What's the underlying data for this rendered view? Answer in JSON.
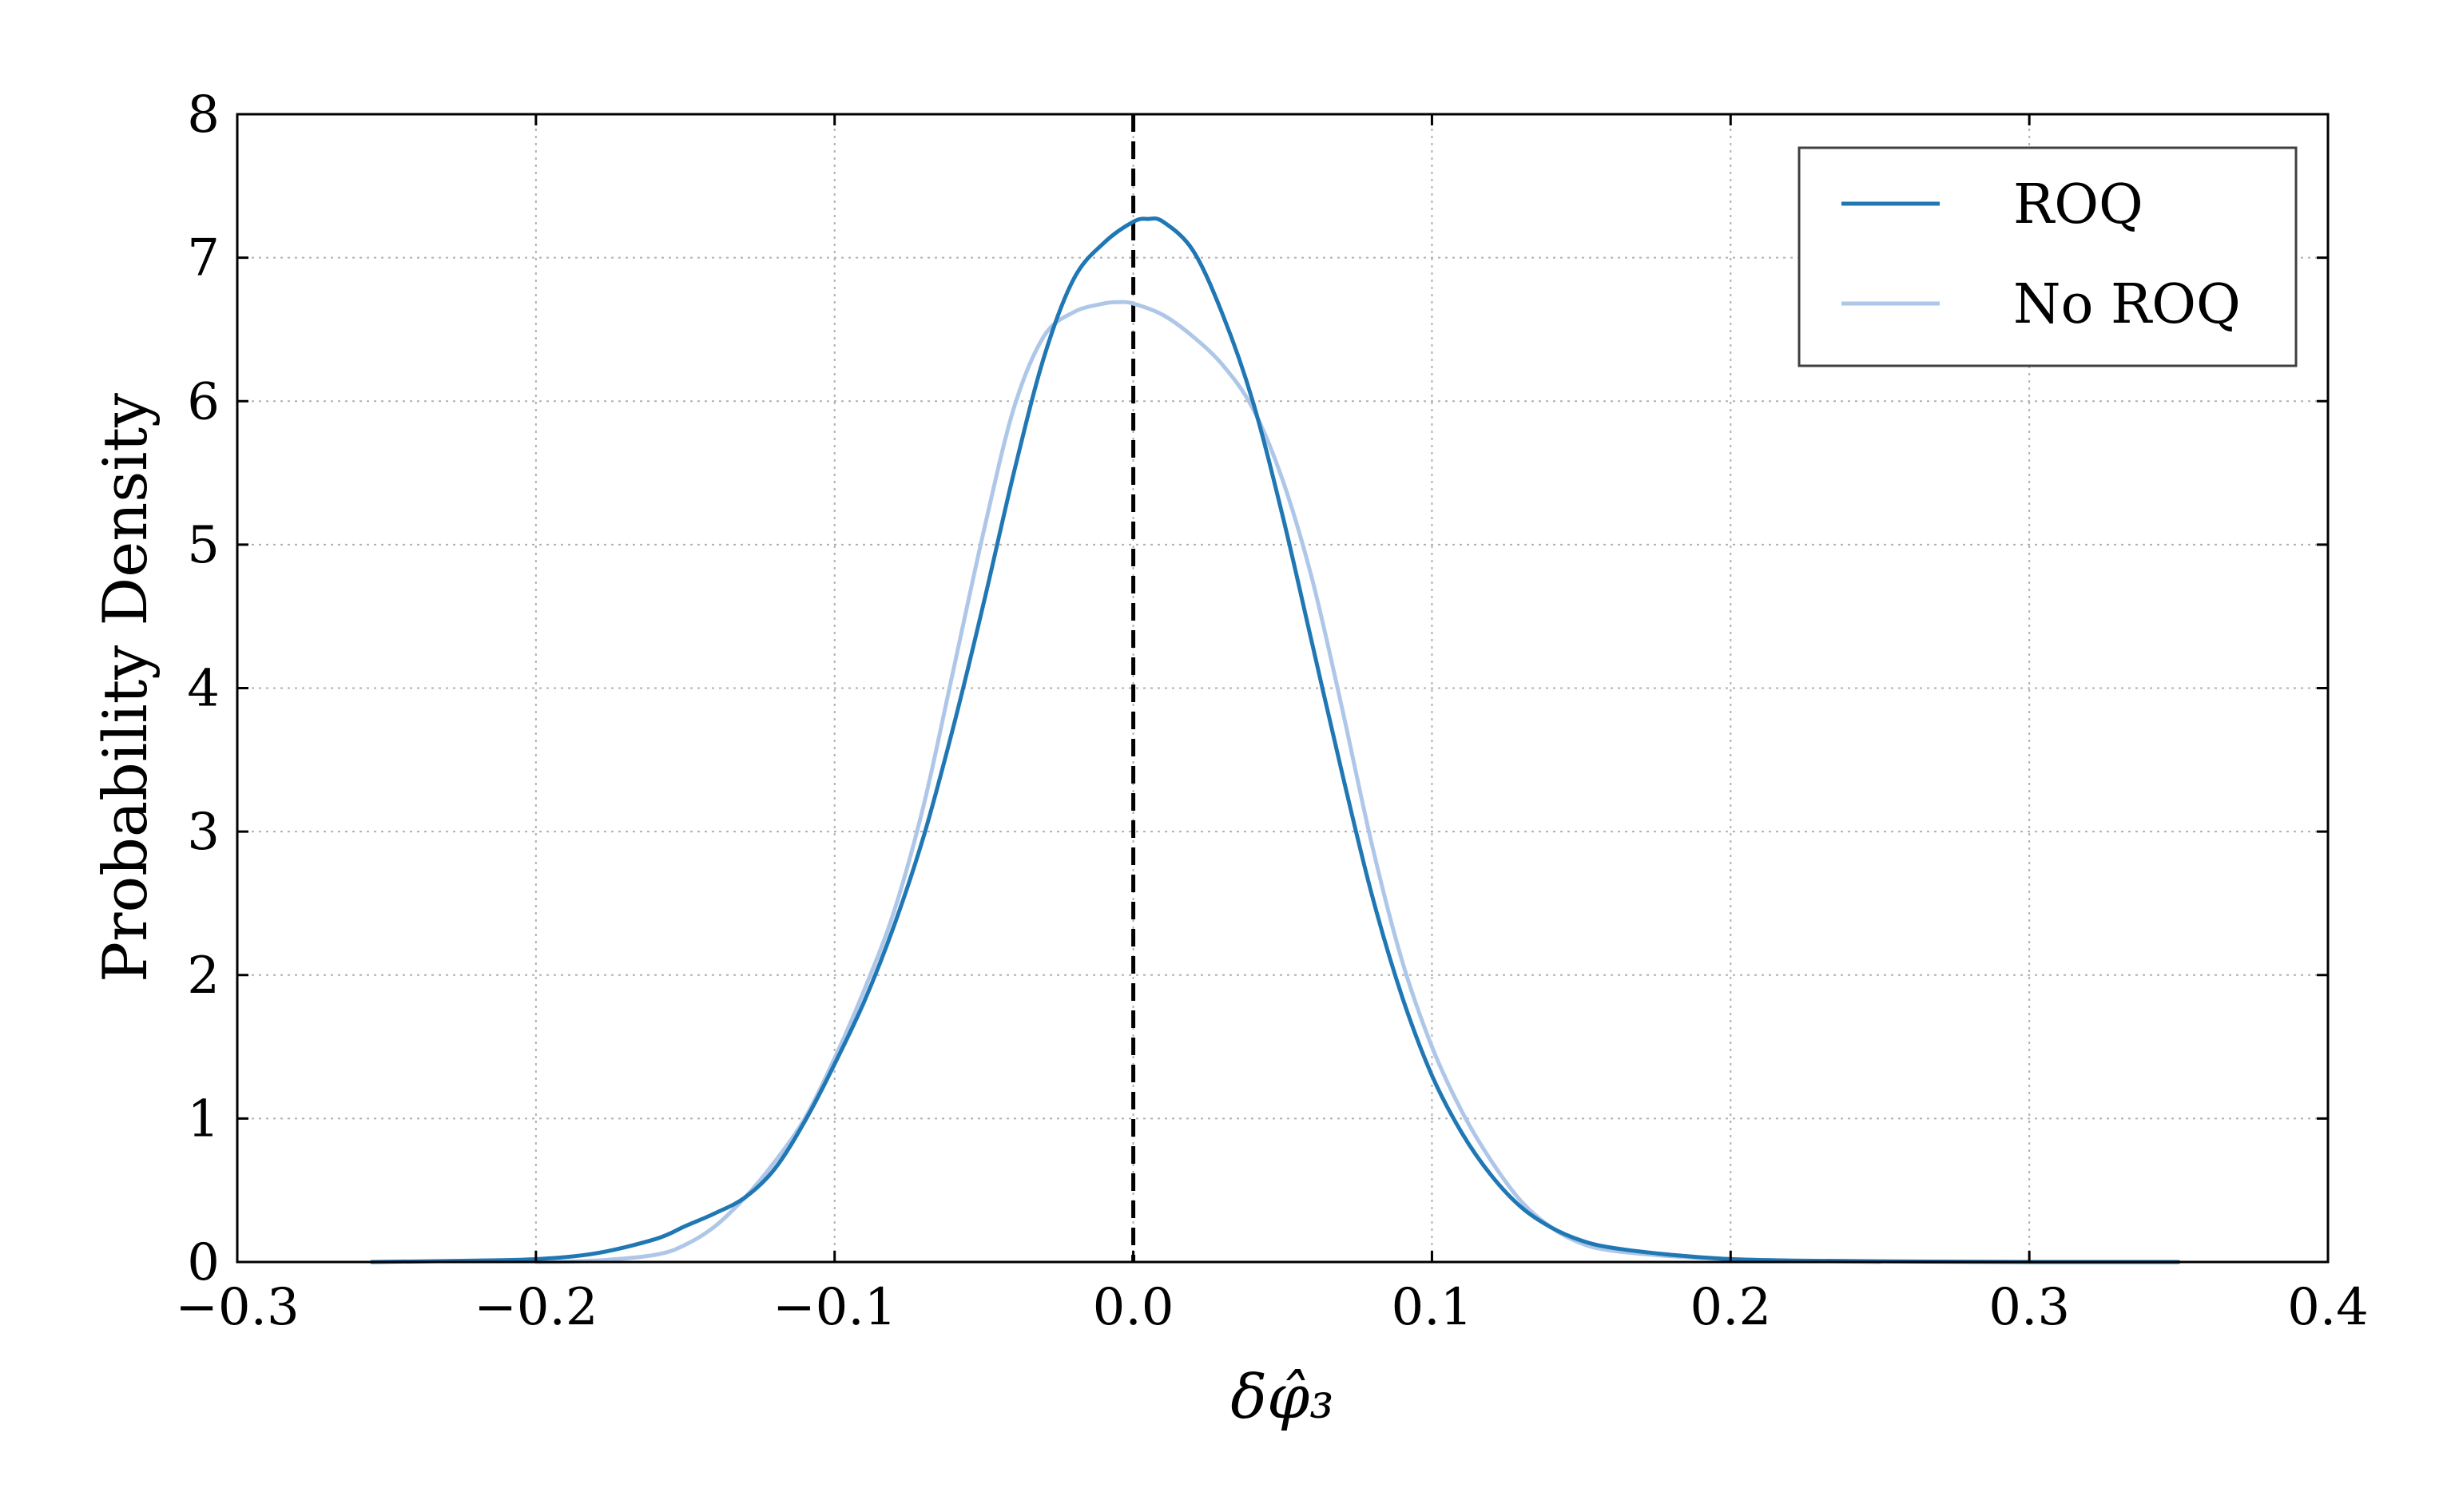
{
  "chart_data": {
    "type": "line",
    "xlabel": "δφ̂₃",
    "ylabel": "Probability Density",
    "xlim": [
      -0.3,
      0.4
    ],
    "ylim": [
      0,
      8
    ],
    "xticks": [
      -0.3,
      -0.2,
      -0.1,
      0.0,
      0.1,
      0.2,
      0.3,
      0.4
    ],
    "xtick_labels": [
      "−0.3",
      "−0.2",
      "−0.1",
      "0.0",
      "0.1",
      "0.2",
      "0.3",
      "0.4"
    ],
    "yticks": [
      0,
      1,
      2,
      3,
      4,
      5,
      6,
      7,
      8
    ],
    "ytick_labels": [
      "0",
      "1",
      "2",
      "3",
      "4",
      "5",
      "6",
      "7",
      "8"
    ],
    "grid": true,
    "legend_position": "top-right",
    "reference_line": {
      "x": 0.0,
      "style": "dashed",
      "color": "#000000"
    },
    "series": [
      {
        "name": "ROQ",
        "color": "#1f77b4",
        "x": [
          -0.255,
          -0.22,
          -0.2,
          -0.18,
          -0.16,
          -0.15,
          -0.14,
          -0.13,
          -0.12,
          -0.11,
          -0.1,
          -0.09,
          -0.08,
          -0.07,
          -0.06,
          -0.05,
          -0.04,
          -0.03,
          -0.02,
          -0.01,
          0.0,
          0.005,
          0.01,
          0.02,
          0.03,
          0.04,
          0.05,
          0.06,
          0.07,
          0.08,
          0.09,
          0.1,
          0.11,
          0.12,
          0.13,
          0.14,
          0.15,
          0.16,
          0.18,
          0.2,
          0.22,
          0.25,
          0.3,
          0.35
        ],
        "y": [
          0.0,
          0.01,
          0.02,
          0.06,
          0.16,
          0.25,
          0.34,
          0.45,
          0.65,
          0.98,
          1.38,
          1.82,
          2.35,
          2.98,
          3.75,
          4.6,
          5.5,
          6.3,
          6.85,
          7.1,
          7.25,
          7.27,
          7.25,
          7.05,
          6.6,
          6.0,
          5.2,
          4.3,
          3.4,
          2.55,
          1.85,
          1.3,
          0.9,
          0.6,
          0.38,
          0.24,
          0.15,
          0.1,
          0.05,
          0.02,
          0.01,
          0.005,
          0.0,
          0.0
        ]
      },
      {
        "name": "No ROQ",
        "color": "#aec7e8",
        "x": [
          -0.2,
          -0.18,
          -0.16,
          -0.15,
          -0.14,
          -0.13,
          -0.12,
          -0.11,
          -0.1,
          -0.09,
          -0.08,
          -0.07,
          -0.06,
          -0.05,
          -0.04,
          -0.03,
          -0.02,
          -0.01,
          -0.005,
          0.0,
          0.01,
          0.02,
          0.03,
          0.04,
          0.05,
          0.06,
          0.07,
          0.08,
          0.09,
          0.1,
          0.11,
          0.12,
          0.13,
          0.14,
          0.15,
          0.16,
          0.18,
          0.2,
          0.22,
          0.25
        ],
        "y": [
          0.0,
          0.01,
          0.05,
          0.12,
          0.25,
          0.45,
          0.7,
          1.0,
          1.42,
          1.9,
          2.45,
          3.2,
          4.15,
          5.1,
          5.95,
          6.45,
          6.62,
          6.68,
          6.69,
          6.68,
          6.6,
          6.45,
          6.25,
          5.95,
          5.45,
          4.75,
          3.85,
          2.9,
          2.1,
          1.5,
          1.05,
          0.7,
          0.42,
          0.24,
          0.13,
          0.08,
          0.04,
          0.02,
          0.01,
          0.0
        ]
      }
    ]
  }
}
